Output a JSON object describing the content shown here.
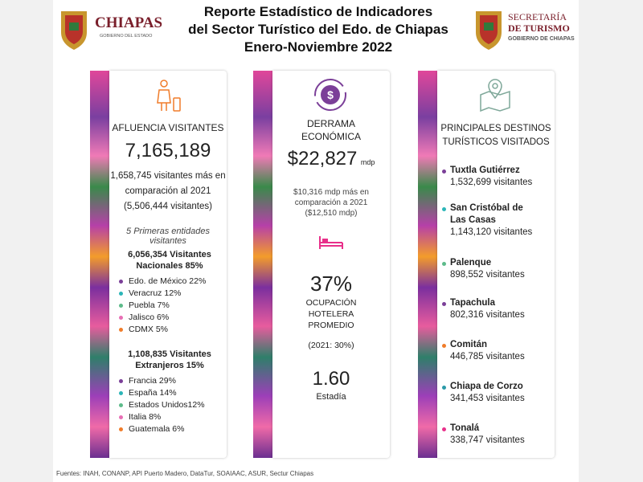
{
  "header": {
    "logo_left": "CHIAPAS",
    "logo_left_sub": "GOBIERNO DEL ESTADO",
    "title_lines": [
      "Reporte Estadístico de Indicadores",
      "del Sector Turístico del Edo. de Chiapas",
      "Enero-Noviembre 2022"
    ],
    "logo_right_lines": [
      "SECRETARÍA",
      "DE TURISMO"
    ],
    "logo_right_sub": "GOBIERNO DE CHIAPAS"
  },
  "panels": [
    {
      "heading": "AFLUENCIA VISITANTES",
      "total": "7,165,189",
      "detail_lines": [
        "1,658,745 visitantes más en",
        "comparación al 2021",
        "(5,506,444 visitantes)"
      ],
      "subheading": "5 Primeras entidades visitantes",
      "groups": [
        {
          "title_lines": [
            "6,056,354 Visitantes",
            "Nacionales 85%"
          ],
          "items": [
            {
              "text": "Edo. de México 22%",
              "color": "#7b3f98"
            },
            {
              "text": "Veracruz 12%",
              "color": "#2bb5b8"
            },
            {
              "text": "Puebla 7%",
              "color": "#5dbb8a"
            },
            {
              "text": "Jalisco 6%",
              "color": "#e86fb5"
            },
            {
              "text": "CDMX 5%",
              "color": "#f07c2a"
            }
          ]
        },
        {
          "title_lines": [
            "1,108,835 Visitantes",
            "Extranjeros 15%"
          ],
          "items": [
            {
              "text": "Francia 29%",
              "color": "#7b3f98"
            },
            {
              "text": "España 14%",
              "color": "#2bb5b8"
            },
            {
              "text": "Estados Unidos12%",
              "color": "#5dbb8a"
            },
            {
              "text": "Italia 8%",
              "color": "#e86fb5"
            },
            {
              "text": "Guatemala 6%",
              "color": "#f07c2a"
            }
          ]
        }
      ]
    },
    {
      "heading_lines": [
        "DERRAMA",
        "ECONÓMICA"
      ],
      "amount": "$22,827",
      "amount_unit": "mdp",
      "detail_lines": [
        "$10,316 mdp más en",
        "comparación a 2021",
        "($12,510 mdp)"
      ],
      "occupancy": "37%",
      "occupancy_lines": [
        "OCUPACIÓN",
        "HOTELERA",
        "PROMEDIO"
      ],
      "occupancy_prev": "(2021: 30%)",
      "stay": "1.60",
      "stay_label": "Estadía"
    },
    {
      "heading_lines": [
        "PRINCIPALES DESTINOS",
        "TURÍSTICOS VISITADOS"
      ],
      "destinations": [
        {
          "name_lines": [
            "Tuxtla Gutiérrez"
          ],
          "visitors": "1,532,699 visitantes",
          "color": "#7b3f98"
        },
        {
          "name_lines": [
            "San Cristóbal de",
            "Las Casas"
          ],
          "visitors": "1,143,120 visitantes",
          "color": "#2bb5b8"
        },
        {
          "name_lines": [
            "Palenque"
          ],
          "visitors": "898,552 visitantes",
          "color": "#5dbb8a"
        },
        {
          "name_lines": [
            "Tapachula"
          ],
          "visitors": "802,316 visitantes",
          "color": "#7b3f98"
        },
        {
          "name_lines": [
            "Comitán"
          ],
          "visitors": "446,785 visitantes",
          "color": "#f07c2a"
        },
        {
          "name_lines": [
            "Chiapa de Corzo"
          ],
          "visitors": "341,453 visitantes",
          "color": "#2b9aa8"
        },
        {
          "name_lines": [
            "Tonalá"
          ],
          "visitors": "338,747 visitantes",
          "color": "#e8308a"
        }
      ]
    }
  ],
  "footer": "Fuentes: INAH, CONANP, API Puerto Madero, DataTur, SOAIAAC, ASUR, Sectur Chiapas"
}
